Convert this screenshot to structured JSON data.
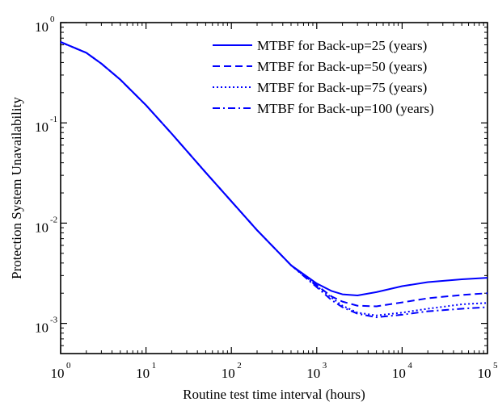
{
  "chart_data": {
    "type": "line",
    "title": "",
    "xlabel": "Routine test time interval (hours)",
    "ylabel": "Protection System Unavailability",
    "xscale": "log",
    "yscale": "log",
    "xlim": [
      1,
      100000
    ],
    "ylim": [
      0.0005,
      1
    ],
    "grid": false,
    "legend_position": "top-right",
    "x_ticks": [
      {
        "base": "10",
        "exp": "0",
        "value": 1
      },
      {
        "base": "10",
        "exp": "1",
        "value": 10
      },
      {
        "base": "10",
        "exp": "2",
        "value": 100
      },
      {
        "base": "10",
        "exp": "3",
        "value": 1000
      },
      {
        "base": "10",
        "exp": "4",
        "value": 10000
      },
      {
        "base": "10",
        "exp": "5",
        "value": 100000
      }
    ],
    "y_ticks": [
      {
        "base": "10",
        "exp": "0",
        "value": 1
      },
      {
        "base": "10",
        "exp": "-1",
        "value": 0.1
      },
      {
        "base": "10",
        "exp": "-2",
        "value": 0.01
      },
      {
        "base": "10",
        "exp": "-3",
        "value": 0.001
      }
    ],
    "series": [
      {
        "name": "MTBF for Back-up=25 (years)",
        "line_style": "solid",
        "color": "#0000ff",
        "x": [
          1,
          2,
          3,
          5,
          10,
          20,
          50,
          100,
          200,
          500,
          1000,
          1500,
          2000,
          3000,
          5000,
          10000,
          20000,
          50000,
          100000
        ],
        "y": [
          0.64,
          0.5,
          0.39,
          0.27,
          0.15,
          0.078,
          0.032,
          0.0165,
          0.0085,
          0.0038,
          0.0025,
          0.0021,
          0.00195,
          0.0019,
          0.00205,
          0.00235,
          0.00258,
          0.00275,
          0.00285
        ]
      },
      {
        "name": "MTBF for Back-up=50 (years)",
        "line_style": "dashed",
        "color": "#0000ff",
        "x": [
          1,
          2,
          3,
          5,
          10,
          20,
          50,
          100,
          200,
          500,
          1000,
          1500,
          2000,
          3000,
          5000,
          10000,
          20000,
          50000,
          100000
        ],
        "y": [
          0.64,
          0.5,
          0.39,
          0.27,
          0.15,
          0.078,
          0.032,
          0.0165,
          0.0085,
          0.0038,
          0.0024,
          0.00185,
          0.00165,
          0.0015,
          0.00148,
          0.00162,
          0.00178,
          0.00192,
          0.002
        ]
      },
      {
        "name": "MTBF for Back-up=75 (years)",
        "line_style": "dotted",
        "color": "#0000ff",
        "x": [
          1,
          2,
          3,
          5,
          10,
          20,
          50,
          100,
          200,
          500,
          1000,
          1500,
          2000,
          3000,
          5000,
          10000,
          20000,
          50000,
          100000
        ],
        "y": [
          0.64,
          0.5,
          0.39,
          0.27,
          0.15,
          0.078,
          0.032,
          0.0165,
          0.0085,
          0.0038,
          0.00235,
          0.0018,
          0.0015,
          0.00128,
          0.0012,
          0.00128,
          0.0014,
          0.00155,
          0.0016
        ]
      },
      {
        "name": "MTBF for Back-up=100 (years)",
        "line_style": "dash-dot",
        "color": "#0000ff",
        "x": [
          1,
          2,
          3,
          5,
          10,
          20,
          50,
          100,
          200,
          500,
          1000,
          1500,
          2000,
          3000,
          5000,
          10000,
          20000,
          50000,
          100000
        ],
        "y": [
          0.64,
          0.5,
          0.39,
          0.27,
          0.15,
          0.078,
          0.032,
          0.0165,
          0.0085,
          0.0038,
          0.0023,
          0.0017,
          0.00145,
          0.00125,
          0.00115,
          0.00122,
          0.00132,
          0.0014,
          0.00145
        ]
      }
    ]
  }
}
